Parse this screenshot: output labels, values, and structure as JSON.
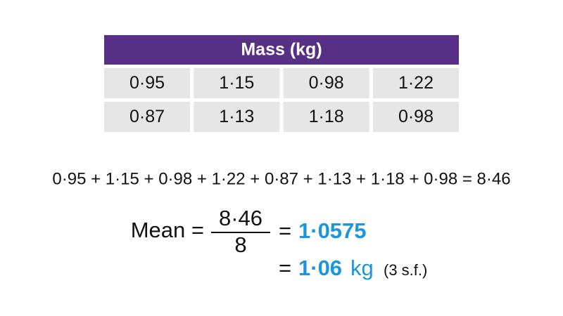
{
  "table": {
    "header": "Mass (kg)",
    "rows": [
      [
        "0·95",
        "1·15",
        "0·98",
        "1·22"
      ],
      [
        "0·87",
        "1·13",
        "1·18",
        "0·98"
      ]
    ]
  },
  "sum_equation": "0·95 + 1·15 + 0·98 + 1·22 + 0·87 + 1·13 + 1·18 + 0·98 = 8·46",
  "mean": {
    "label": "Mean =",
    "numerator": "8·46",
    "denominator": "8",
    "result_prefix": "=",
    "result": "1·0575",
    "rounded_prefix": "=",
    "rounded": "1·06",
    "unit": "kg",
    "note": "(3 s.f.)"
  }
}
